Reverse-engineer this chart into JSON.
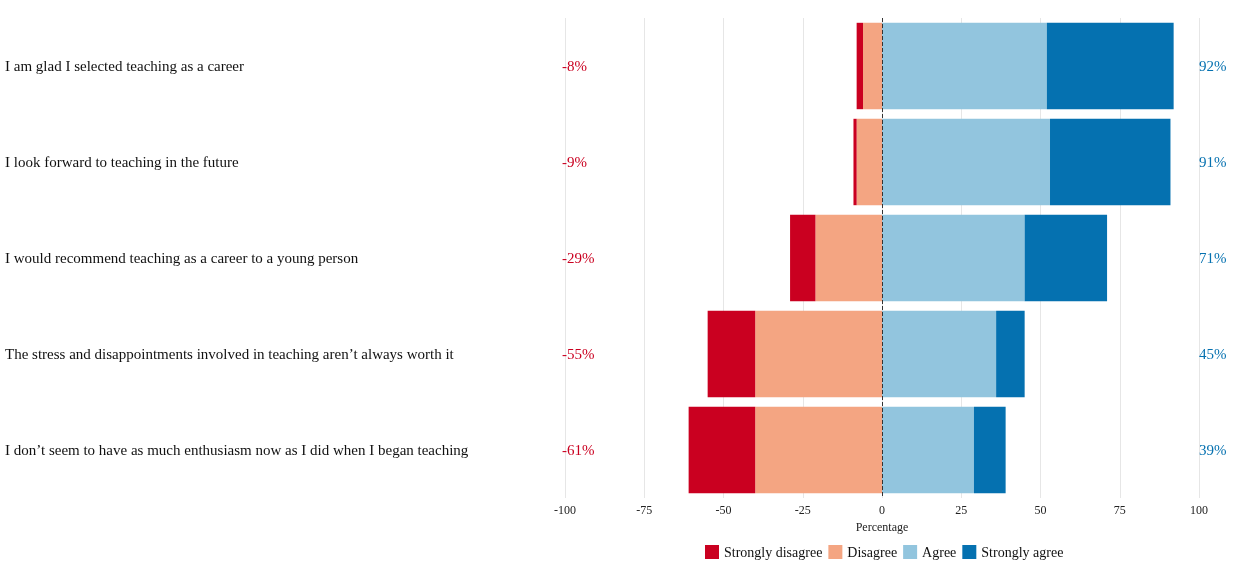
{
  "chart_data": {
    "type": "bar",
    "orientation": "horizontal",
    "stacked": true,
    "categories": [
      "I am glad I selected teaching as a career",
      "I look forward to teaching in the future",
      "I would recommend teaching as a career to a young person",
      "The stress and disappointments involved in teaching aren’t always worth it",
      "I don’t seem to have as much enthusiasm now as I did when I began teaching"
    ],
    "series": [
      {
        "name": "Disagree",
        "color": "#f4a582",
        "values": [
          -6,
          -8,
          -21,
          -40,
          -40
        ]
      },
      {
        "name": "Strongly disagree",
        "color": "#ca0020",
        "values": [
          -2,
          -1,
          -8,
          -15,
          -21
        ]
      },
      {
        "name": "Agree",
        "color": "#92c5de",
        "values": [
          52,
          53,
          45,
          36,
          29
        ]
      },
      {
        "name": "Strongly agree",
        "color": "#0571b0",
        "values": [
          40,
          38,
          26,
          9,
          10
        ]
      }
    ],
    "xlim": [
      -100,
      100
    ],
    "xticks": [
      -100,
      -75,
      -50,
      -25,
      0,
      25,
      50,
      75,
      100
    ],
    "xlabel": "Percentage",
    "grid": "x",
    "legend": "bottom",
    "ref_lines": [
      {
        "axis": "x",
        "value": 0,
        "color": "#333333",
        "line_style": "dashed"
      }
    ],
    "annotations": [
      "-8%",
      "92%",
      "-9%",
      "91%",
      "-29%",
      "71%",
      "-55%",
      "45%",
      "-61%",
      "39%"
    ]
  }
}
